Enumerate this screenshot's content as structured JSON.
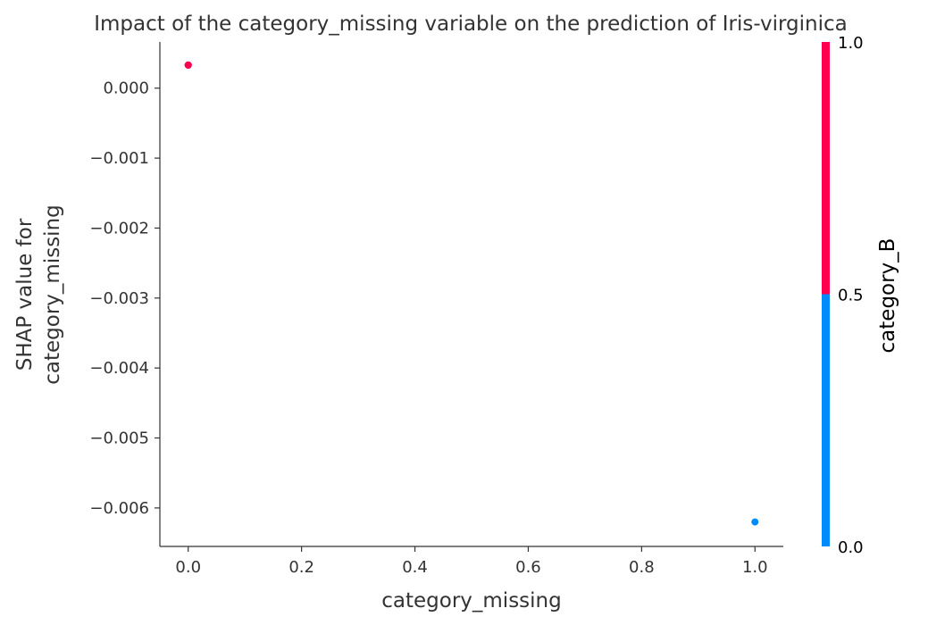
{
  "chart_data": {
    "type": "scatter",
    "title": "Impact of the category_missing variable on the prediction of Iris-virginica",
    "xlabel": "category_missing",
    "ylabel_lines": [
      "SHAP value for",
      "category_missing"
    ],
    "xlim": [
      -0.05,
      1.05
    ],
    "ylim": [
      -0.00655,
      0.00066
    ],
    "x_ticks": [
      {
        "value": 0.0,
        "label": "0.0"
      },
      {
        "value": 0.2,
        "label": "0.2"
      },
      {
        "value": 0.4,
        "label": "0.4"
      },
      {
        "value": 0.6,
        "label": "0.6"
      },
      {
        "value": 0.8,
        "label": "0.8"
      },
      {
        "value": 1.0,
        "label": "1.0"
      }
    ],
    "y_ticks": [
      {
        "value": 0.0,
        "label": "0.000"
      },
      {
        "value": -0.001,
        "label": "−0.001"
      },
      {
        "value": -0.002,
        "label": "−0.002"
      },
      {
        "value": -0.003,
        "label": "−0.003"
      },
      {
        "value": -0.004,
        "label": "−0.004"
      },
      {
        "value": -0.005,
        "label": "−0.005"
      },
      {
        "value": -0.006,
        "label": "−0.006"
      }
    ],
    "points": [
      {
        "x": 0.0,
        "y": 0.00033,
        "category_B": 1.0
      },
      {
        "x": 0.0,
        "y": 0.00033,
        "category_B": 1.0
      },
      {
        "x": 0.0,
        "y": 0.00033,
        "category_B": 1.0
      },
      {
        "x": 1.0,
        "y": -0.0062,
        "category_B": 0.0
      }
    ],
    "colorbar": {
      "title": "category_B",
      "range": [
        0.0,
        1.0
      ],
      "ticks": [
        {
          "value": 0.0,
          "label": "0.0"
        },
        {
          "value": 0.5,
          "label": "0.5"
        },
        {
          "value": 1.0,
          "label": "1.0"
        }
      ],
      "low_color": "#008bfb",
      "high_color": "#ff0051"
    },
    "grid": false
  }
}
